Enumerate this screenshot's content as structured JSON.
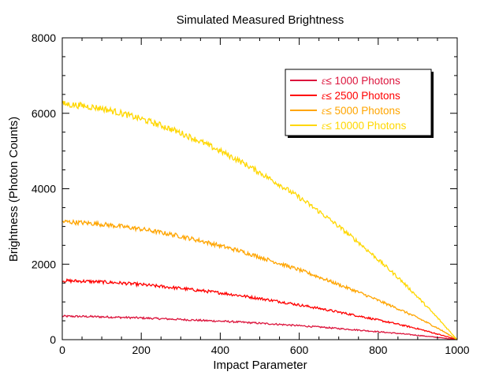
{
  "chart_data": {
    "type": "line",
    "title": "Simulated Measured Brightness",
    "xlabel": "Impact Parameter",
    "ylabel": "Brightness (Photon Counts)",
    "xlim": [
      0,
      1000
    ],
    "ylim": [
      0,
      8000
    ],
    "xticks": [
      0,
      200,
      400,
      600,
      800,
      1000
    ],
    "yticks": [
      0,
      2000,
      4000,
      6000,
      8000
    ],
    "x": [
      0,
      50,
      100,
      150,
      200,
      250,
      300,
      350,
      400,
      450,
      500,
      550,
      600,
      650,
      700,
      750,
      800,
      850,
      900,
      950,
      1000
    ],
    "legend_position": "top-right",
    "grid": false,
    "series": [
      {
        "name": "ε≤ 1000 Photons",
        "name_symbol": "ε",
        "name_text": "≤ 1000 Photons",
        "color": "#dc143c",
        "values": [
          620,
          615,
          605,
          590,
          575,
          555,
          535,
          510,
          490,
          465,
          435,
          405,
          370,
          335,
          295,
          255,
          210,
          165,
          115,
          60,
          0
        ]
      },
      {
        "name": "ε≤ 2500 Photons",
        "name_symbol": "ε",
        "name_text": "≤ 2500 Photons",
        "color": "#ff0000",
        "values": [
          1560,
          1550,
          1530,
          1500,
          1460,
          1410,
          1360,
          1300,
          1240,
          1170,
          1090,
          1010,
          920,
          830,
          730,
          630,
          520,
          410,
          290,
          150,
          0
        ]
      },
      {
        "name": "ε≤ 5000 Photons",
        "name_symbol": "ε",
        "name_text": "≤ 5000 Photons",
        "color": "#ffa500",
        "values": [
          3130,
          3100,
          3060,
          3000,
          2930,
          2840,
          2740,
          2620,
          2490,
          2350,
          2190,
          2020,
          1850,
          1660,
          1460,
          1260,
          1040,
          820,
          580,
          310,
          0
        ]
      },
      {
        "name": "ε≤ 10000 Photons",
        "name_symbol": "ε",
        "name_text": "≤ 10000 Photons",
        "color": "#ffd700",
        "values": [
          6250,
          6200,
          6130,
          6000,
          5850,
          5680,
          5480,
          5250,
          5000,
          4730,
          4430,
          4110,
          3770,
          3400,
          3000,
          2580,
          2120,
          1650,
          1130,
          580,
          0
        ]
      }
    ]
  }
}
